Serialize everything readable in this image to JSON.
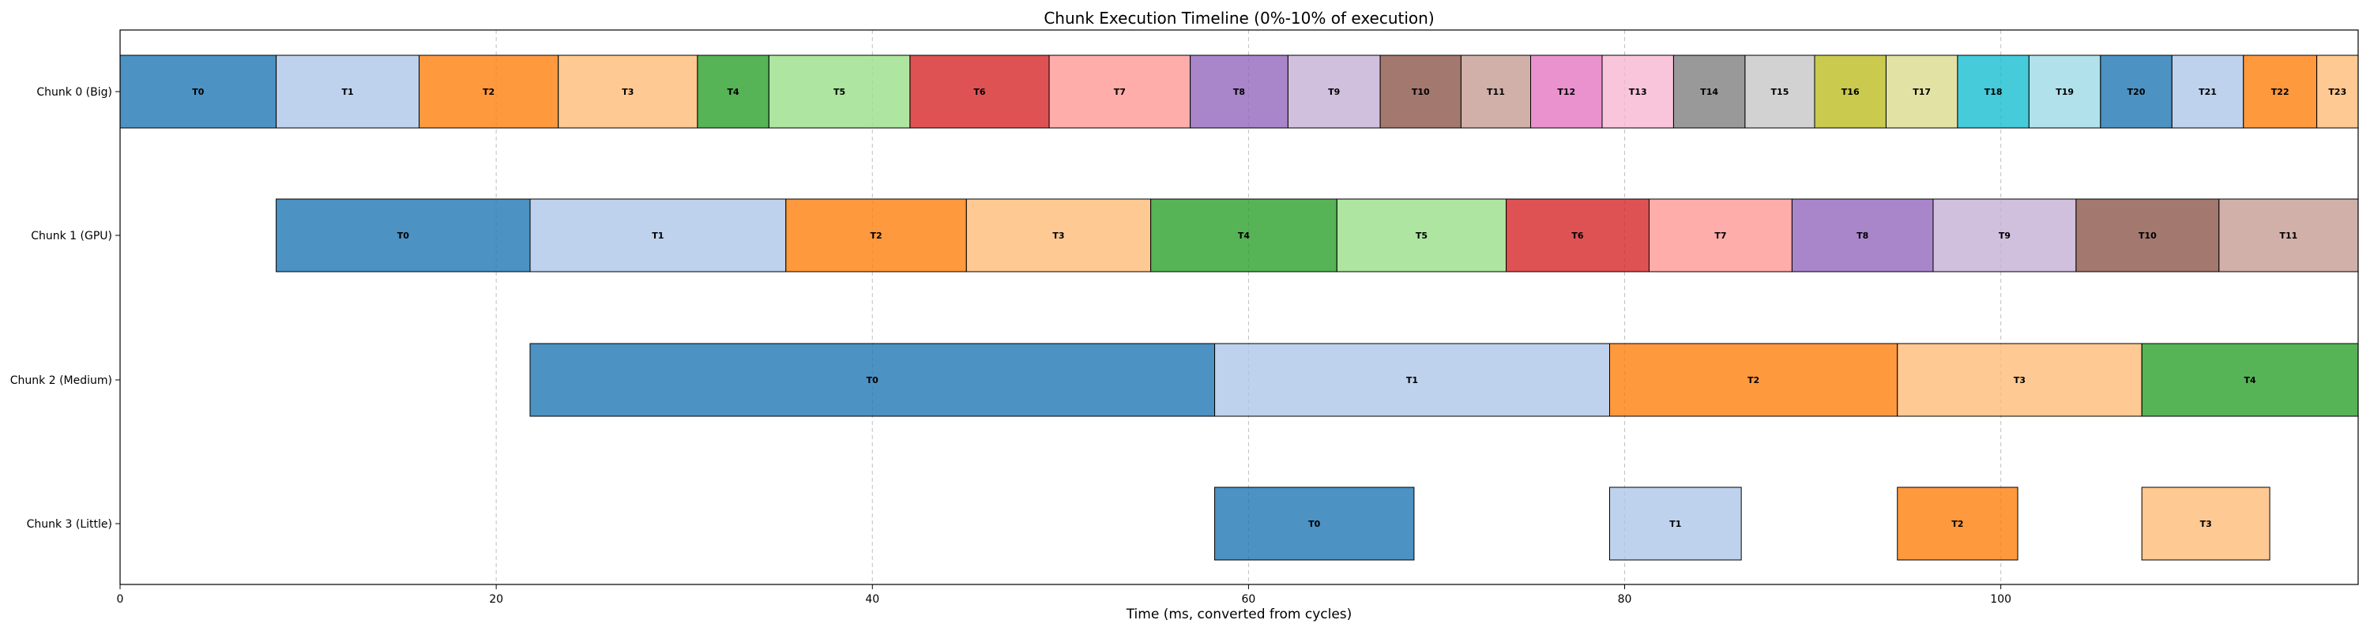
{
  "chart_data": {
    "type": "gantt",
    "title": "Chunk Execution Timeline (0%-10% of execution)",
    "xlabel": "Time (ms, converted from cycles)",
    "ylabel": "",
    "xlim": [
      0,
      119
    ],
    "xticks": [
      0,
      20,
      40,
      60,
      80,
      100
    ],
    "grid": "x-dashed",
    "rows": [
      {
        "name": "Chunk 0 (Big)",
        "tasks": [
          {
            "label": "T0",
            "start": 0.0,
            "end": 8.3
          },
          {
            "label": "T1",
            "start": 8.3,
            "end": 15.9
          },
          {
            "label": "T2",
            "start": 15.9,
            "end": 23.3
          },
          {
            "label": "T3",
            "start": 23.3,
            "end": 30.7
          },
          {
            "label": "T4",
            "start": 30.7,
            "end": 34.5
          },
          {
            "label": "T5",
            "start": 34.5,
            "end": 42.0
          },
          {
            "label": "T6",
            "start": 42.0,
            "end": 49.4
          },
          {
            "label": "T7",
            "start": 49.4,
            "end": 56.9
          },
          {
            "label": "T8",
            "start": 56.9,
            "end": 62.1
          },
          {
            "label": "T9",
            "start": 62.1,
            "end": 67.0
          },
          {
            "label": "T10",
            "start": 67.0,
            "end": 71.3
          },
          {
            "label": "T11",
            "start": 71.3,
            "end": 75.0
          },
          {
            "label": "T12",
            "start": 75.0,
            "end": 78.8
          },
          {
            "label": "T13",
            "start": 78.8,
            "end": 82.6
          },
          {
            "label": "T14",
            "start": 82.6,
            "end": 86.4
          },
          {
            "label": "T15",
            "start": 86.4,
            "end": 90.1
          },
          {
            "label": "T16",
            "start": 90.1,
            "end": 93.9
          },
          {
            "label": "T17",
            "start": 93.9,
            "end": 97.7
          },
          {
            "label": "T18",
            "start": 97.7,
            "end": 101.5
          },
          {
            "label": "T19",
            "start": 101.5,
            "end": 105.3
          },
          {
            "label": "T20",
            "start": 105.3,
            "end": 109.1
          },
          {
            "label": "T21",
            "start": 109.1,
            "end": 112.9
          },
          {
            "label": "T22",
            "start": 112.9,
            "end": 116.8
          },
          {
            "label": "T23",
            "start": 116.8,
            "end": 119.0
          }
        ]
      },
      {
        "name": "Chunk 1 (GPU)",
        "tasks": [
          {
            "label": "T0",
            "start": 8.3,
            "end": 21.8
          },
          {
            "label": "T1",
            "start": 21.8,
            "end": 35.4
          },
          {
            "label": "T2",
            "start": 35.4,
            "end": 45.0
          },
          {
            "label": "T3",
            "start": 45.0,
            "end": 54.8
          },
          {
            "label": "T4",
            "start": 54.8,
            "end": 64.7
          },
          {
            "label": "T5",
            "start": 64.7,
            "end": 73.7
          },
          {
            "label": "T6",
            "start": 73.7,
            "end": 81.3
          },
          {
            "label": "T7",
            "start": 81.3,
            "end": 88.9
          },
          {
            "label": "T8",
            "start": 88.9,
            "end": 96.4
          },
          {
            "label": "T9",
            "start": 96.4,
            "end": 104.0
          },
          {
            "label": "T10",
            "start": 104.0,
            "end": 111.6
          },
          {
            "label": "T11",
            "start": 111.6,
            "end": 119.0
          }
        ]
      },
      {
        "name": "Chunk 2 (Medium)",
        "tasks": [
          {
            "label": "T0",
            "start": 21.8,
            "end": 58.2
          },
          {
            "label": "T1",
            "start": 58.2,
            "end": 79.2
          },
          {
            "label": "T2",
            "start": 79.2,
            "end": 94.5
          },
          {
            "label": "T3",
            "start": 94.5,
            "end": 107.5
          },
          {
            "label": "T4",
            "start": 107.5,
            "end": 119.0
          }
        ]
      },
      {
        "name": "Chunk 3 (Little)",
        "tasks": [
          {
            "label": "T0",
            "start": 58.2,
            "end": 68.8
          },
          {
            "label": "T1",
            "start": 79.2,
            "end": 86.2
          },
          {
            "label": "T2",
            "start": 94.5,
            "end": 100.9
          },
          {
            "label": "T3",
            "start": 107.5,
            "end": 114.3
          }
        ]
      }
    ],
    "colors": [
      "#1f77b4",
      "#aec7e8",
      "#ff7f0e",
      "#ffbb78",
      "#2ca02c",
      "#98df8a",
      "#d62728",
      "#ff9896",
      "#9467bd",
      "#c5b0d5",
      "#8c564b",
      "#c49c94",
      "#e377c2",
      "#f7b6d2",
      "#7f7f7f",
      "#c7c7c7",
      "#bcbd22",
      "#dbdb8d",
      "#17becf",
      "#9edae5"
    ]
  }
}
